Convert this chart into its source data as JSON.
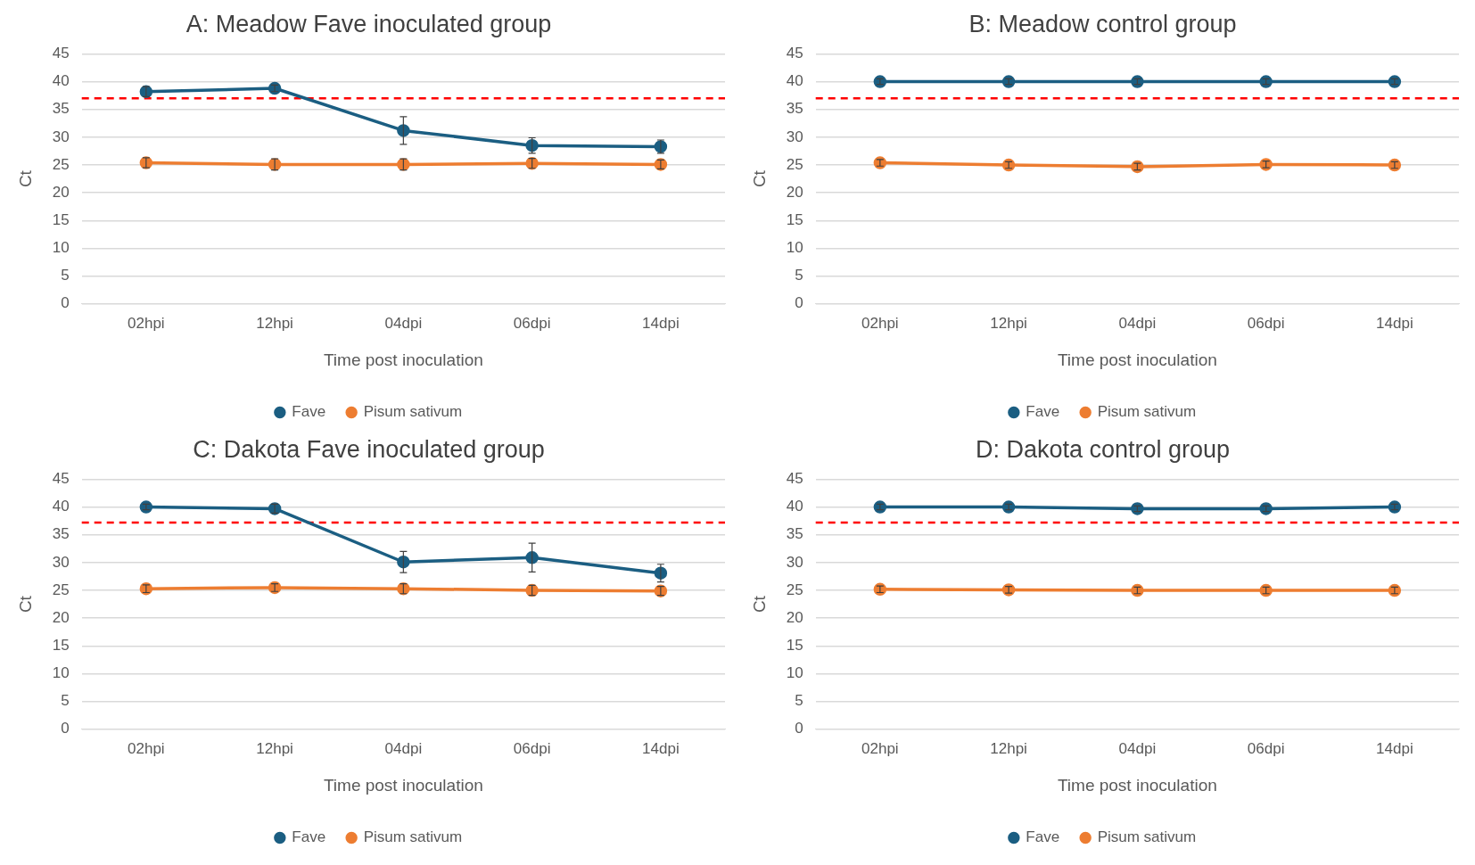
{
  "chart_data": [
    {
      "type": "line",
      "title": "A: Meadow Fave inoculated group",
      "xlabel": "Time post inoculation",
      "ylabel": "Ct",
      "categories": [
        "02hpi",
        "12hpi",
        "04dpi",
        "06dpi",
        "14dpi"
      ],
      "series": [
        {
          "name": "Fave",
          "color": "#1b5e82",
          "values": [
            38.2,
            38.8,
            31.2,
            28.5,
            28.3
          ],
          "errors": [
            0.9,
            0.6,
            2.5,
            1.4,
            1.2
          ]
        },
        {
          "name": "Pisum sativum",
          "color": "#ed7d31",
          "values": [
            25.4,
            25.1,
            25.1,
            25.3,
            25.1
          ],
          "errors": [
            0.9,
            1.0,
            1.0,
            0.9,
            0.8
          ]
        }
      ],
      "ylim": [
        0,
        45
      ],
      "yticks": [
        0,
        5,
        10,
        15,
        20,
        25,
        30,
        35,
        40,
        45
      ],
      "ref_lines": [
        {
          "axis": "y",
          "value": 37,
          "color": "#ff0000",
          "line_style": "dashed"
        }
      ],
      "grid": "y",
      "legend": "bottom",
      "marker": "circle",
      "line_style": "solid"
    },
    {
      "type": "line",
      "title": "B: Meadow control group",
      "xlabel": "Time post inoculation",
      "ylabel": "Ct",
      "categories": [
        "02hpi",
        "12hpi",
        "04dpi",
        "06dpi",
        "14dpi"
      ],
      "series": [
        {
          "name": "Fave",
          "color": "#1b5e82",
          "values": [
            40,
            40,
            40,
            40,
            40
          ],
          "errors": [
            0.5,
            0.5,
            0.5,
            0.5,
            0.5
          ]
        },
        {
          "name": "Pisum sativum",
          "color": "#ed7d31",
          "values": [
            25.4,
            25.0,
            24.7,
            25.1,
            25.0
          ],
          "errors": [
            0.6,
            0.6,
            0.6,
            0.6,
            0.6
          ]
        }
      ],
      "ylim": [
        0,
        45
      ],
      "yticks": [
        0,
        5,
        10,
        15,
        20,
        25,
        30,
        35,
        40,
        45
      ],
      "ref_lines": [
        {
          "axis": "y",
          "value": 37,
          "color": "#ff0000",
          "line_style": "dashed"
        }
      ],
      "grid": "y",
      "legend": "bottom",
      "marker": "circle",
      "line_style": "solid"
    },
    {
      "type": "line",
      "title": "C: Dakota Fave inoculated group",
      "xlabel": "Time post inoculation",
      "ylabel": "Ct",
      "categories": [
        "02hpi",
        "12hpi",
        "04dpi",
        "06dpi",
        "14dpi"
      ],
      "series": [
        {
          "name": "Fave",
          "color": "#1b5e82",
          "values": [
            40,
            39.7,
            30.1,
            30.9,
            28.1
          ],
          "errors": [
            0.5,
            0.8,
            1.9,
            2.6,
            1.6
          ]
        },
        {
          "name": "Pisum sativum",
          "color": "#ed7d31",
          "values": [
            25.3,
            25.5,
            25.3,
            25.0,
            24.9
          ],
          "errors": [
            0.7,
            0.7,
            0.9,
            0.9,
            0.8
          ]
        }
      ],
      "ylim": [
        0,
        45
      ],
      "yticks": [
        0,
        5,
        10,
        15,
        20,
        25,
        30,
        35,
        40,
        45
      ],
      "ref_lines": [
        {
          "axis": "y",
          "value": 37.2,
          "color": "#ff0000",
          "line_style": "dashed"
        }
      ],
      "grid": "y",
      "legend": "bottom",
      "marker": "circle",
      "line_style": "solid"
    },
    {
      "type": "line",
      "title": "D: Dakota control group",
      "xlabel": "Time post inoculation",
      "ylabel": "Ct",
      "categories": [
        "02hpi",
        "12hpi",
        "04dpi",
        "06dpi",
        "14dpi"
      ],
      "series": [
        {
          "name": "Fave",
          "color": "#1b5e82",
          "values": [
            40,
            40,
            39.7,
            39.7,
            40
          ],
          "errors": [
            0.5,
            0.5,
            0.5,
            0.5,
            0.5
          ]
        },
        {
          "name": "Pisum sativum",
          "color": "#ed7d31",
          "values": [
            25.2,
            25.1,
            25.0,
            25.0,
            25.0
          ],
          "errors": [
            0.6,
            0.6,
            0.6,
            0.6,
            0.6
          ]
        }
      ],
      "ylim": [
        0,
        45
      ],
      "yticks": [
        0,
        5,
        10,
        15,
        20,
        25,
        30,
        35,
        40,
        45
      ],
      "ref_lines": [
        {
          "axis": "y",
          "value": 37.2,
          "color": "#ff0000",
          "line_style": "dashed"
        }
      ],
      "grid": "y",
      "legend": "bottom",
      "marker": "circle",
      "line_style": "solid"
    }
  ]
}
